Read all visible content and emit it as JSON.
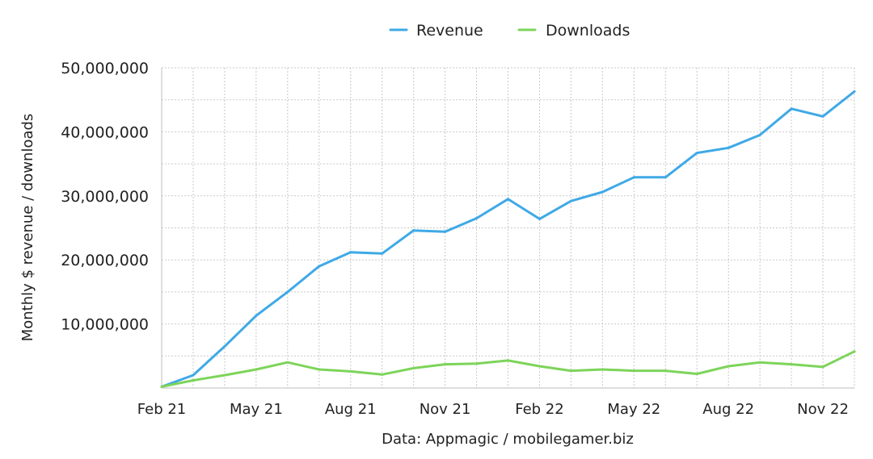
{
  "chart_data": {
    "type": "line",
    "title": "",
    "xlabel": "",
    "ylabel": "Monthly $ revenue / downloads",
    "source": "Data: Appmagic / mobilegamer.biz",
    "x": [
      "Feb 21",
      "Mar 21",
      "Apr 21",
      "May 21",
      "Jun 21",
      "Jul 21",
      "Aug 21",
      "Sep 21",
      "Oct 21",
      "Nov 21",
      "Dec 21",
      "Jan 22",
      "Feb 22",
      "Mar 22",
      "Apr 22",
      "May 22",
      "Jun 22",
      "Jul 22",
      "Aug 22",
      "Sep 22",
      "Oct 22",
      "Nov 22",
      "Dec 22"
    ],
    "x_tick_labels": [
      "Feb 21",
      "May 21",
      "Aug 21",
      "Nov 21",
      "Feb 22",
      "May 22",
      "Aug 22",
      "Nov 22"
    ],
    "x_tick_indices": [
      0,
      3,
      6,
      9,
      12,
      15,
      18,
      21
    ],
    "y_ticks": [
      10000000,
      20000000,
      30000000,
      40000000,
      50000000
    ],
    "y_tick_labels": [
      "10,000,000",
      "20,000,000",
      "30,000,000",
      "40,000,000",
      "50,000,000"
    ],
    "ylim": [
      0,
      50000000
    ],
    "grid": true,
    "legend_position": "top-center",
    "series": [
      {
        "name": "Revenue",
        "color": "#3fa9e6",
        "values": [
          200000,
          2000000,
          6500000,
          11300000,
          15000000,
          19000000,
          21200000,
          21000000,
          24600000,
          24400000,
          26500000,
          29500000,
          26400000,
          29200000,
          30600000,
          32900000,
          32900000,
          36700000,
          37500000,
          39500000,
          43600000,
          42400000,
          46300000
        ]
      },
      {
        "name": "Downloads",
        "color": "#7dd45a",
        "values": [
          200000,
          1200000,
          2000000,
          2900000,
          4000000,
          2900000,
          2600000,
          2100000,
          3100000,
          3700000,
          3800000,
          4300000,
          3400000,
          2700000,
          2900000,
          2700000,
          2700000,
          2200000,
          3400000,
          4000000,
          3700000,
          3300000,
          5700000
        ]
      }
    ]
  }
}
